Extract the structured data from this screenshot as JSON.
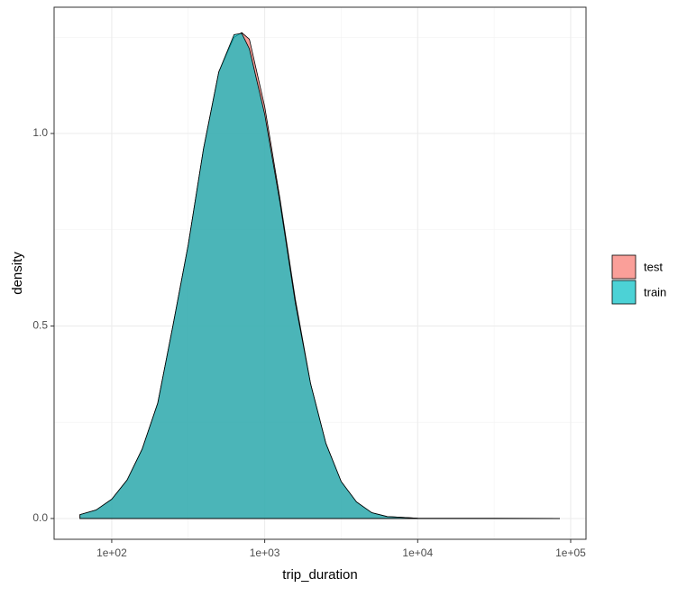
{
  "chart_data": {
    "type": "area",
    "x_label": "trip_duration",
    "y_label": "density",
    "x_scale": "log",
    "x": [
      62,
      79,
      100,
      126,
      158,
      200,
      251,
      316,
      398,
      501,
      631,
      708,
      794,
      1000,
      1259,
      1585,
      1995,
      2512,
      3162,
      3981,
      5012,
      6310,
      10000,
      31623,
      85000
    ],
    "series": [
      {
        "name": "test",
        "color": "#F8766D",
        "values": [
          0.01,
          0.022,
          0.05,
          0.1,
          0.18,
          0.3,
          0.5,
          0.71,
          0.96,
          1.16,
          1.25,
          1.262,
          1.245,
          1.07,
          0.83,
          0.57,
          0.35,
          0.195,
          0.096,
          0.043,
          0.015,
          0.005,
          0.0008,
          0.0003,
          0
        ]
      },
      {
        "name": "train",
        "color": "#00BFC4",
        "values": [
          0.01,
          0.022,
          0.05,
          0.1,
          0.18,
          0.3,
          0.5,
          0.71,
          0.96,
          1.16,
          1.257,
          1.26,
          1.22,
          1.05,
          0.82,
          0.56,
          0.35,
          0.195,
          0.096,
          0.043,
          0.015,
          0.005,
          0.0008,
          0.0003,
          0
        ]
      }
    ],
    "alpha": 0.7,
    "xlim": [
      42,
      126000
    ],
    "xticks": [
      {
        "value": 100,
        "label": "1e+02"
      },
      {
        "value": 1000,
        "label": "1e+03"
      },
      {
        "value": 10000,
        "label": "1e+04"
      },
      {
        "value": 100000,
        "label": "1e+05"
      }
    ],
    "ylim": [
      -0.054,
      1.328
    ],
    "yticks": [
      {
        "value": 0,
        "label": "0.0"
      },
      0.5,
      {
        "value": 1,
        "label": "1.0"
      }
    ],
    "grid": true,
    "legend": "right"
  }
}
